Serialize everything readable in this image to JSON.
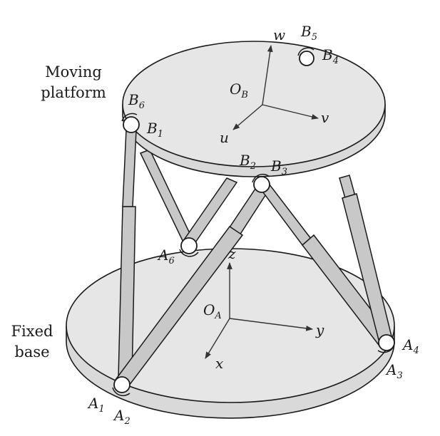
{
  "captions": {
    "moving_line1": "Moving",
    "moving_line2": "platform",
    "fixed_line1": "Fixed",
    "fixed_line2": "base"
  },
  "platform_frame": {
    "origin": {
      "main": "O",
      "sub": "B"
    },
    "axes": [
      "u",
      "v",
      "w"
    ]
  },
  "base_frame": {
    "origin": {
      "main": "O",
      "sub": "A"
    },
    "axes": [
      "x",
      "y",
      "z"
    ]
  },
  "platform_joints": [
    {
      "main": "B",
      "sub": "1"
    },
    {
      "main": "B",
      "sub": "2"
    },
    {
      "main": "B",
      "sub": "3"
    },
    {
      "main": "B",
      "sub": "4"
    },
    {
      "main": "B",
      "sub": "5"
    },
    {
      "main": "B",
      "sub": "6"
    }
  ],
  "base_joints": [
    {
      "main": "A",
      "sub": "1"
    },
    {
      "main": "A",
      "sub": "2"
    },
    {
      "main": "A",
      "sub": "3"
    },
    {
      "main": "A",
      "sub": "4"
    },
    {
      "main": "A",
      "sub": "6"
    }
  ],
  "colors": {
    "disk_fill": "#e6e6e6",
    "leg_fill": "#c8c8c8",
    "line": "#1a1a1a",
    "axis": "#333333"
  }
}
